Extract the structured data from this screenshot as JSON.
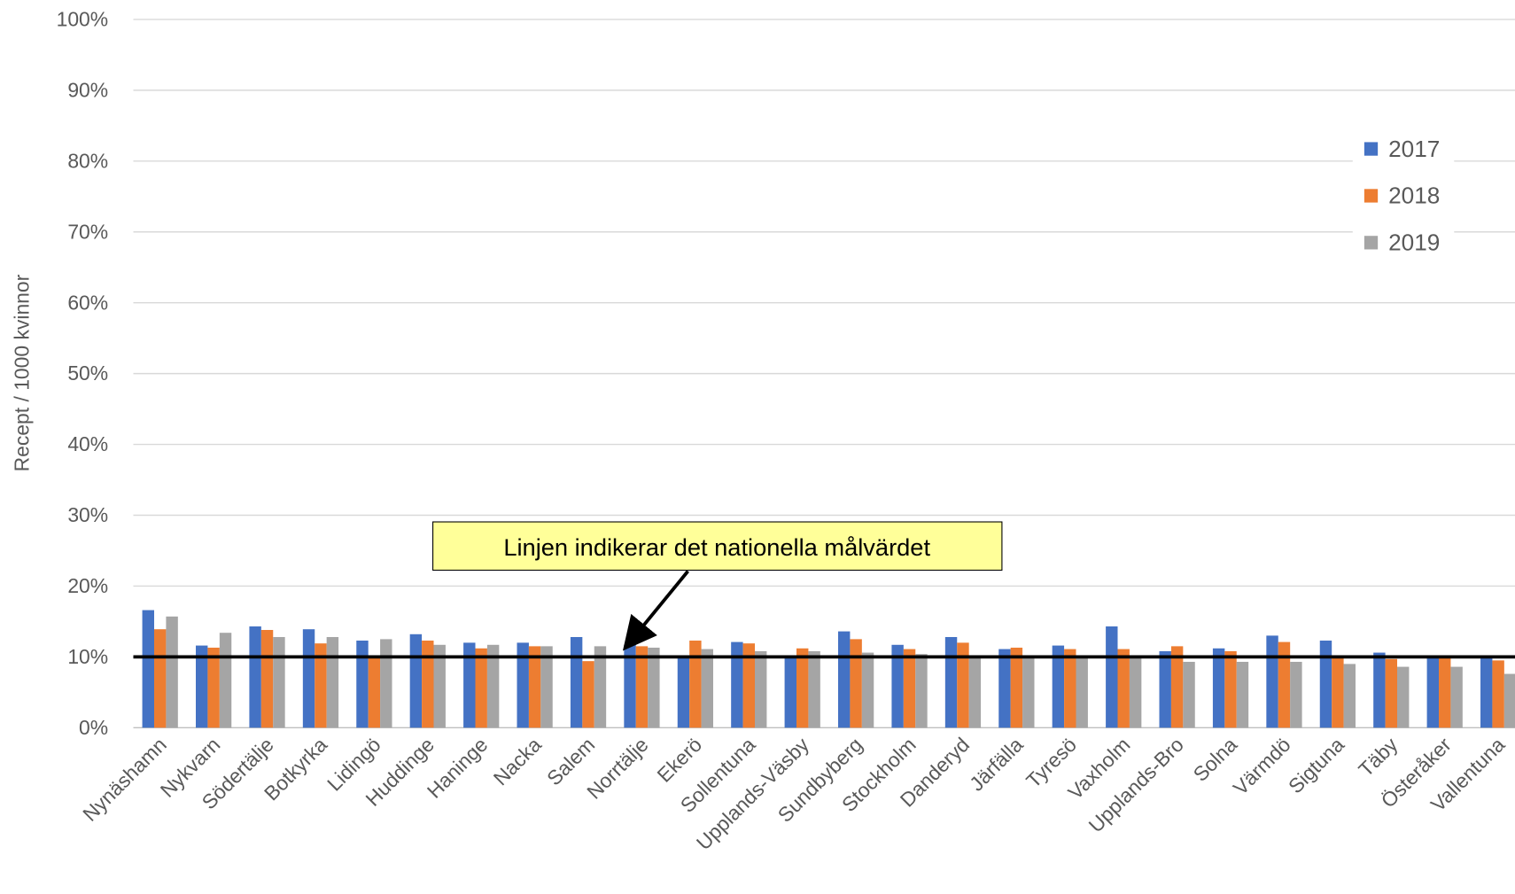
{
  "chart_data": {
    "type": "bar",
    "y_label": "Recept / 1000 kvinnor",
    "categories": [
      "Nynäshamn",
      "Nykvarn",
      "Södertälje",
      "Botkyrka",
      "Lidingö",
      "Huddinge",
      "Haninge",
      "Nacka",
      "Salem",
      "Norrtälje",
      "Ekerö",
      "Sollentuna",
      "Upplands-Väsby",
      "Sundbyberg",
      "Stockholm",
      "Danderyd",
      "Järfälla",
      "Tyresö",
      "Vaxholm",
      "Upplands-Bro",
      "Solna",
      "Värmdö",
      "Sigtuna",
      "Täby",
      "Österåker",
      "Vallentuna"
    ],
    "series": [
      {
        "name": "2017",
        "color": "#4472c4",
        "values": [
          16.6,
          11.6,
          14.3,
          13.9,
          12.3,
          13.2,
          12.0,
          12.0,
          12.8,
          11.7,
          10.0,
          12.1,
          10.0,
          13.6,
          11.7,
          12.8,
          11.1,
          11.6,
          14.3,
          10.8,
          11.2,
          13.0,
          12.3,
          10.6,
          10.0,
          9.8
        ]
      },
      {
        "name": "2018",
        "color": "#ed7d31",
        "values": [
          13.9,
          11.3,
          13.8,
          11.9,
          10.2,
          12.3,
          11.2,
          11.5,
          9.4,
          11.5,
          12.3,
          11.9,
          11.2,
          12.5,
          11.1,
          12.0,
          11.3,
          11.1,
          11.1,
          11.5,
          10.8,
          12.1,
          10.0,
          9.7,
          9.8,
          9.5
        ]
      },
      {
        "name": "2019",
        "color": "#a5a5a5",
        "values": [
          15.7,
          13.4,
          12.8,
          12.8,
          12.5,
          11.7,
          11.7,
          11.5,
          11.5,
          11.3,
          11.1,
          10.8,
          10.8,
          10.6,
          10.4,
          10.2,
          10.2,
          10.2,
          9.8,
          9.3,
          9.3,
          9.3,
          9.0,
          8.6,
          8.6,
          7.6
        ]
      }
    ],
    "ylim": [
      0,
      100
    ],
    "yticks": [
      {
        "value": 0,
        "label": "0%"
      },
      {
        "value": 10,
        "label": "10%"
      },
      {
        "value": 20,
        "label": "20%"
      },
      {
        "value": 30,
        "label": "30%"
      },
      {
        "value": 40,
        "label": "40%"
      },
      {
        "value": 50,
        "label": "50%"
      },
      {
        "value": 60,
        "label": "60%"
      },
      {
        "value": 70,
        "label": "70%"
      },
      {
        "value": 80,
        "label": "80%"
      },
      {
        "value": 90,
        "label": "90%"
      },
      {
        "value": 100,
        "label": "100%"
      }
    ],
    "grid": true,
    "legend": "right",
    "reference_line": 10,
    "annotation": "Linjen indikerar det nationella målvärdet"
  }
}
